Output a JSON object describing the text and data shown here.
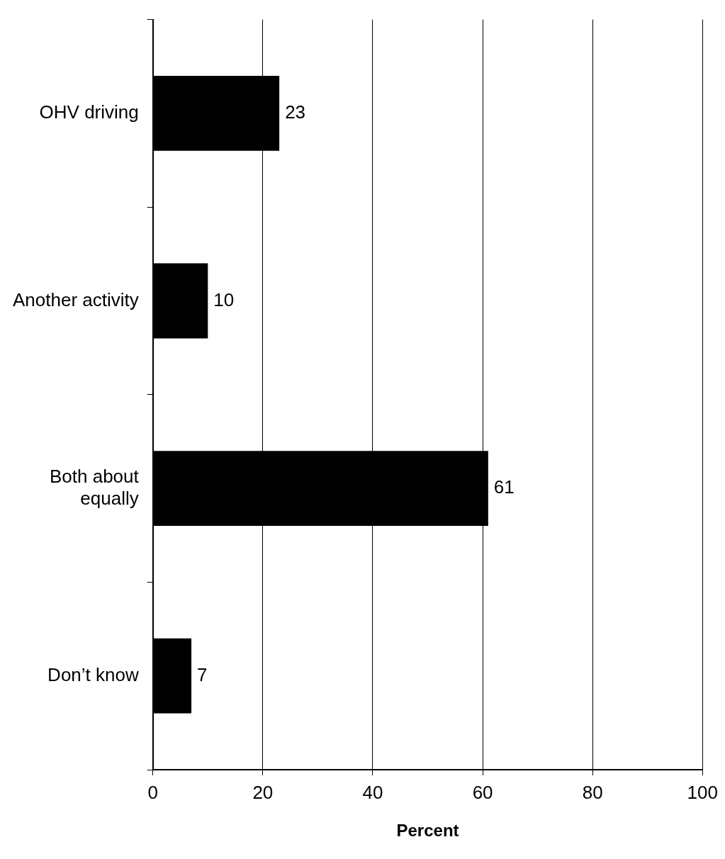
{
  "chart_data": {
    "type": "bar",
    "orientation": "horizontal",
    "categories": [
      "OHV driving",
      "Another activity",
      "Both about equally",
      "Don’t know"
    ],
    "values": [
      23,
      10,
      61,
      7
    ],
    "color": "#000000",
    "xlabel": "Percent",
    "xlim": [
      0,
      100
    ],
    "xticks": [
      0,
      20,
      40,
      60,
      80,
      100
    ],
    "grid": "x",
    "data_labels": true,
    "legend": false
  }
}
